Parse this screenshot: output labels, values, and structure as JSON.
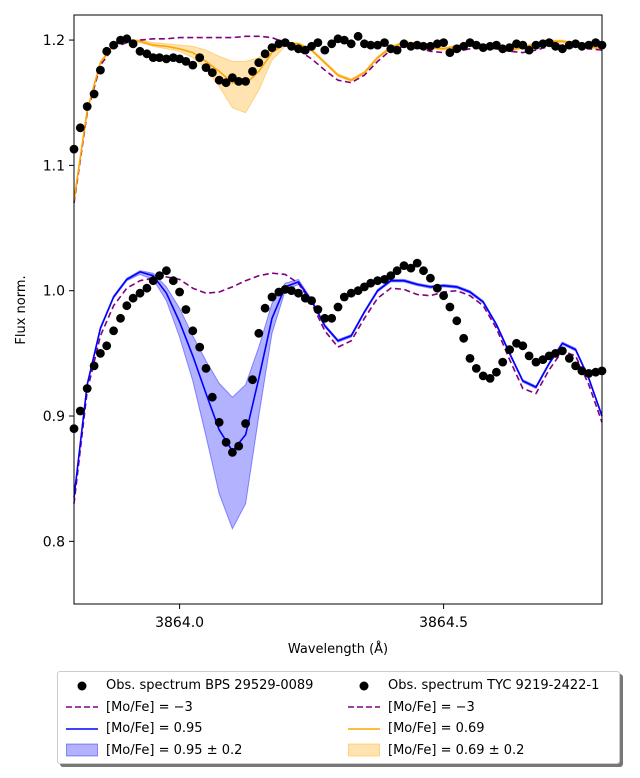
{
  "chart_data": {
    "type": "line",
    "xlabel": "Wavelength (Å)",
    "ylabel": "Flux norm.",
    "xlim": [
      3863.8,
      3864.8
    ],
    "ylim": [
      0.75,
      1.22
    ],
    "xticks": [
      3864.0,
      3864.5
    ],
    "xtick_labels": [
      "3864.0",
      "3864.5"
    ],
    "yticks": [
      0.8,
      0.9,
      1.0,
      1.1,
      1.2
    ],
    "ytick_labels": [
      "0.8",
      "0.9",
      "1.0",
      "1.1",
      "1.2"
    ],
    "colors": {
      "obs": "#000000",
      "mo_low": "#800080",
      "bps_fit": "#0000ff",
      "bps_band": "#0000ff",
      "tyc_fit": "#ffa500",
      "tyc_band": "#ffa500"
    },
    "legend": [
      {
        "label": "Obs. spectrum BPS 29529-0089",
        "style": "dot"
      },
      {
        "label": "[Mo/Fe] = −3",
        "style": "dashed",
        "color": "#800080"
      },
      {
        "label": "[Mo/Fe] = 0.95",
        "style": "line",
        "color": "#0000ff"
      },
      {
        "label": "[Mo/Fe] = 0.95 ± 0.2",
        "style": "band",
        "color": "#0000ff"
      },
      {
        "label": "Obs. spectrum TYC 9219-2422-1",
        "style": "dot"
      },
      {
        "label": "[Mo/Fe] = −3",
        "style": "dashed",
        "color": "#800080"
      },
      {
        "label": "[Mo/Fe] = 0.69",
        "style": "line",
        "color": "#ffa500"
      },
      {
        "label": "[Mo/Fe] = 0.69 ± 0.2",
        "style": "band",
        "color": "#ffa500"
      }
    ],
    "series": [
      {
        "name": "Obs. spectrum TYC 9219-2422-1",
        "kind": "scatter",
        "x": [
          3863.8,
          3863.812,
          3863.825,
          3863.838,
          3863.85,
          3863.862,
          3863.875,
          3863.888,
          3863.9,
          3863.912,
          3863.925,
          3863.938,
          3863.95,
          3863.962,
          3863.975,
          3863.988,
          3864.0,
          3864.012,
          3864.025,
          3864.038,
          3864.05,
          3864.062,
          3864.075,
          3864.088,
          3864.1,
          3864.112,
          3864.125,
          3864.138,
          3864.15,
          3864.162,
          3864.175,
          3864.188,
          3864.2,
          3864.212,
          3864.225,
          3864.238,
          3864.25,
          3864.262,
          3864.275,
          3864.288,
          3864.3,
          3864.312,
          3864.325,
          3864.338,
          3864.35,
          3864.362,
          3864.375,
          3864.388,
          3864.4,
          3864.412,
          3864.425,
          3864.438,
          3864.45,
          3864.462,
          3864.475,
          3864.488,
          3864.5,
          3864.512,
          3864.525,
          3864.538,
          3864.55,
          3864.562,
          3864.575,
          3864.588,
          3864.6,
          3864.612,
          3864.625,
          3864.638,
          3864.65,
          3864.662,
          3864.675,
          3864.688,
          3864.7,
          3864.712,
          3864.725,
          3864.738,
          3864.75,
          3864.762,
          3864.775,
          3864.788,
          3864.8
        ],
        "y": [
          1.113,
          1.13,
          1.147,
          1.157,
          1.176,
          1.191,
          1.196,
          1.2,
          1.201,
          1.197,
          1.191,
          1.189,
          1.186,
          1.186,
          1.185,
          1.186,
          1.185,
          1.183,
          1.18,
          1.186,
          1.178,
          1.174,
          1.168,
          1.166,
          1.17,
          1.167,
          1.167,
          1.175,
          1.182,
          1.189,
          1.194,
          1.197,
          1.198,
          1.195,
          1.193,
          1.192,
          1.195,
          1.198,
          1.192,
          1.197,
          1.201,
          1.2,
          1.197,
          1.203,
          1.197,
          1.196,
          1.196,
          1.198,
          1.193,
          1.192,
          1.197,
          1.195,
          1.196,
          1.195,
          1.195,
          1.197,
          1.198,
          1.19,
          1.193,
          1.195,
          1.198,
          1.196,
          1.194,
          1.195,
          1.196,
          1.193,
          1.194,
          1.197,
          1.196,
          1.192,
          1.196,
          1.197,
          1.198,
          1.195,
          1.193,
          1.196,
          1.197,
          1.195,
          1.196,
          1.198,
          1.196
        ]
      },
      {
        "name": "TYC [Mo/Fe] = −3",
        "kind": "dashed",
        "x": [
          3863.8,
          3863.825,
          3863.85,
          3863.875,
          3863.9,
          3863.925,
          3863.95,
          3863.975,
          3864.0,
          3864.025,
          3864.05,
          3864.075,
          3864.1,
          3864.125,
          3864.15,
          3864.175,
          3864.2,
          3864.225,
          3864.25,
          3864.275,
          3864.3,
          3864.325,
          3864.35,
          3864.375,
          3864.4,
          3864.425,
          3864.45,
          3864.475,
          3864.5,
          3864.525,
          3864.55,
          3864.575,
          3864.6,
          3864.625,
          3864.65,
          3864.675,
          3864.7,
          3864.725,
          3864.75,
          3864.775,
          3864.8
        ],
        "y": [
          1.07,
          1.142,
          1.18,
          1.194,
          1.198,
          1.2,
          1.201,
          1.201,
          1.202,
          1.202,
          1.202,
          1.202,
          1.202,
          1.203,
          1.203,
          1.202,
          1.198,
          1.192,
          1.185,
          1.176,
          1.168,
          1.166,
          1.172,
          1.183,
          1.192,
          1.195,
          1.194,
          1.191,
          1.19,
          1.191,
          1.193,
          1.194,
          1.193,
          1.191,
          1.19,
          1.192,
          1.195,
          1.196,
          1.195,
          1.193,
          1.192
        ]
      },
      {
        "name": "TYC [Mo/Fe] = 0.69",
        "kind": "line",
        "x": [
          3863.8,
          3863.825,
          3863.85,
          3863.875,
          3863.9,
          3863.925,
          3863.95,
          3863.975,
          3864.0,
          3864.025,
          3864.05,
          3864.075,
          3864.1,
          3864.125,
          3864.15,
          3864.175,
          3864.2,
          3864.225,
          3864.25,
          3864.275,
          3864.3,
          3864.325,
          3864.35,
          3864.375,
          3864.4,
          3864.425,
          3864.45,
          3864.475,
          3864.5,
          3864.525,
          3864.55,
          3864.575,
          3864.6,
          3864.625,
          3864.65,
          3864.675,
          3864.7,
          3864.725,
          3864.75,
          3864.775,
          3864.8
        ],
        "y": [
          1.072,
          1.144,
          1.182,
          1.196,
          1.2,
          1.199,
          1.196,
          1.195,
          1.193,
          1.19,
          1.183,
          1.175,
          1.166,
          1.165,
          1.175,
          1.19,
          1.197,
          1.197,
          1.192,
          1.182,
          1.172,
          1.168,
          1.174,
          1.186,
          1.194,
          1.198,
          1.197,
          1.194,
          1.193,
          1.195,
          1.197,
          1.196,
          1.194,
          1.192,
          1.194,
          1.197,
          1.199,
          1.199,
          1.197,
          1.195,
          1.193
        ]
      },
      {
        "name": "TYC [Mo/Fe] = 0.69 ± 0.2",
        "kind": "band",
        "x": [
          3863.8,
          3863.825,
          3863.85,
          3863.875,
          3863.9,
          3863.925,
          3863.95,
          3863.975,
          3864.0,
          3864.025,
          3864.05,
          3864.075,
          3864.1,
          3864.125,
          3864.15,
          3864.175,
          3864.2,
          3864.225,
          3864.25,
          3864.275,
          3864.3,
          3864.325,
          3864.35,
          3864.375,
          3864.4,
          3864.425,
          3864.45,
          3864.475,
          3864.5,
          3864.525,
          3864.55,
          3864.575,
          3864.6,
          3864.625,
          3864.65,
          3864.675,
          3864.7,
          3864.725,
          3864.75,
          3864.775,
          3864.8
        ],
        "lower": [
          1.071,
          1.143,
          1.181,
          1.195,
          1.199,
          1.198,
          1.195,
          1.193,
          1.191,
          1.186,
          1.177,
          1.163,
          1.146,
          1.142,
          1.16,
          1.184,
          1.195,
          1.196,
          1.191,
          1.181,
          1.171,
          1.167,
          1.173,
          1.185,
          1.193,
          1.197,
          1.196,
          1.193,
          1.192,
          1.194,
          1.196,
          1.195,
          1.193,
          1.191,
          1.193,
          1.196,
          1.198,
          1.198,
          1.196,
          1.194,
          1.192
        ],
        "upper": [
          1.073,
          1.145,
          1.183,
          1.197,
          1.201,
          1.2,
          1.198,
          1.197,
          1.196,
          1.195,
          1.192,
          1.187,
          1.183,
          1.183,
          1.186,
          1.194,
          1.198,
          1.198,
          1.193,
          1.183,
          1.173,
          1.169,
          1.175,
          1.187,
          1.195,
          1.199,
          1.198,
          1.195,
          1.194,
          1.196,
          1.198,
          1.197,
          1.195,
          1.193,
          1.195,
          1.198,
          1.2,
          1.2,
          1.198,
          1.196,
          1.194
        ]
      },
      {
        "name": "Obs. spectrum BPS 29529-0089",
        "kind": "scatter",
        "x": [
          3863.8,
          3863.812,
          3863.825,
          3863.838,
          3863.85,
          3863.862,
          3863.875,
          3863.888,
          3863.9,
          3863.912,
          3863.925,
          3863.938,
          3863.95,
          3863.962,
          3863.975,
          3863.988,
          3864.0,
          3864.012,
          3864.025,
          3864.038,
          3864.05,
          3864.062,
          3864.075,
          3864.088,
          3864.1,
          3864.112,
          3864.125,
          3864.138,
          3864.15,
          3864.162,
          3864.175,
          3864.188,
          3864.2,
          3864.212,
          3864.225,
          3864.238,
          3864.25,
          3864.262,
          3864.275,
          3864.288,
          3864.3,
          3864.312,
          3864.325,
          3864.338,
          3864.35,
          3864.362,
          3864.375,
          3864.388,
          3864.4,
          3864.412,
          3864.425,
          3864.438,
          3864.45,
          3864.462,
          3864.475,
          3864.488,
          3864.5,
          3864.512,
          3864.525,
          3864.538,
          3864.55,
          3864.562,
          3864.575,
          3864.588,
          3864.6,
          3864.612,
          3864.625,
          3864.638,
          3864.65,
          3864.662,
          3864.675,
          3864.688,
          3864.7,
          3864.712,
          3864.725,
          3864.738,
          3864.75,
          3864.762,
          3864.775,
          3864.788,
          3864.8
        ],
        "y": [
          0.89,
          0.904,
          0.922,
          0.94,
          0.95,
          0.956,
          0.968,
          0.978,
          0.988,
          0.994,
          0.998,
          1.002,
          1.008,
          1.012,
          1.016,
          1.008,
          0.999,
          0.985,
          0.968,
          0.955,
          0.938,
          0.915,
          0.895,
          0.879,
          0.871,
          0.876,
          0.894,
          0.929,
          0.966,
          0.986,
          0.995,
          0.999,
          1.001,
          1.0,
          0.998,
          0.994,
          0.992,
          0.985,
          0.978,
          0.978,
          0.987,
          0.995,
          0.998,
          1.0,
          1.003,
          1.006,
          1.008,
          1.009,
          1.012,
          1.016,
          1.02,
          1.018,
          1.022,
          1.016,
          1.01,
          1.002,
          0.996,
          0.987,
          0.976,
          0.962,
          0.946,
          0.938,
          0.932,
          0.93,
          0.935,
          0.943,
          0.953,
          0.958,
          0.956,
          0.948,
          0.943,
          0.945,
          0.948,
          0.95,
          0.952,
          0.946,
          0.94,
          0.936,
          0.934,
          0.935,
          0.936
        ]
      },
      {
        "name": "BPS [Mo/Fe] = −3",
        "kind": "dashed",
        "x": [
          3863.8,
          3863.825,
          3863.85,
          3863.875,
          3863.9,
          3863.925,
          3863.95,
          3863.975,
          3864.0,
          3864.025,
          3864.05,
          3864.075,
          3864.1,
          3864.125,
          3864.15,
          3864.175,
          3864.2,
          3864.225,
          3864.25,
          3864.275,
          3864.3,
          3864.325,
          3864.35,
          3864.375,
          3864.4,
          3864.425,
          3864.45,
          3864.475,
          3864.5,
          3864.525,
          3864.55,
          3864.575,
          3864.6,
          3864.625,
          3864.65,
          3864.675,
          3864.7,
          3864.725,
          3864.75,
          3864.775,
          3864.8
        ],
        "y": [
          0.83,
          0.92,
          0.964,
          0.988,
          1.002,
          1.008,
          1.01,
          1.011,
          1.009,
          1.002,
          0.998,
          0.999,
          1.003,
          1.008,
          1.012,
          1.014,
          1.013,
          1.006,
          0.99,
          0.968,
          0.955,
          0.96,
          0.978,
          0.994,
          1.002,
          1.001,
          0.997,
          0.996,
          0.999,
          1.0,
          0.996,
          0.988,
          0.97,
          0.945,
          0.922,
          0.918,
          0.937,
          0.952,
          0.948,
          0.925,
          0.895
        ]
      },
      {
        "name": "BPS [Mo/Fe] = 0.95",
        "kind": "line",
        "x": [
          3863.8,
          3863.825,
          3863.85,
          3863.875,
          3863.9,
          3863.925,
          3863.95,
          3863.975,
          3864.0,
          3864.025,
          3864.05,
          3864.075,
          3864.1,
          3864.125,
          3864.15,
          3864.175,
          3864.2,
          3864.225,
          3864.25,
          3864.275,
          3864.3,
          3864.325,
          3864.35,
          3864.375,
          3864.4,
          3864.425,
          3864.45,
          3864.475,
          3864.5,
          3864.525,
          3864.55,
          3864.575,
          3864.6,
          3864.625,
          3864.65,
          3864.675,
          3864.7,
          3864.725,
          3864.75,
          3864.775,
          3864.8
        ],
        "y": [
          0.835,
          0.925,
          0.97,
          0.995,
          1.009,
          1.015,
          1.012,
          0.998,
          0.975,
          0.948,
          0.918,
          0.889,
          0.872,
          0.885,
          0.93,
          0.978,
          1.003,
          1.007,
          0.992,
          0.972,
          0.96,
          0.964,
          0.983,
          1.0,
          1.008,
          1.008,
          1.005,
          1.003,
          1.004,
          1.003,
          0.999,
          0.991,
          0.973,
          0.95,
          0.928,
          0.923,
          0.942,
          0.958,
          0.953,
          0.93,
          0.9
        ]
      },
      {
        "name": "BPS [Mo/Fe] = 0.95 ± 0.2",
        "kind": "band",
        "x": [
          3863.8,
          3863.825,
          3863.85,
          3863.875,
          3863.9,
          3863.925,
          3863.95,
          3863.975,
          3864.0,
          3864.025,
          3864.05,
          3864.075,
          3864.1,
          3864.125,
          3864.15,
          3864.175,
          3864.2,
          3864.225,
          3864.25,
          3864.275,
          3864.3,
          3864.325,
          3864.35,
          3864.375,
          3864.4,
          3864.425,
          3864.45,
          3864.475,
          3864.5,
          3864.525,
          3864.55,
          3864.575,
          3864.6,
          3864.625,
          3864.65,
          3864.675,
          3864.7,
          3864.725,
          3864.75,
          3864.775,
          3864.8
        ],
        "lower": [
          0.834,
          0.924,
          0.969,
          0.994,
          1.008,
          1.013,
          1.009,
          0.992,
          0.963,
          0.928,
          0.884,
          0.838,
          0.81,
          0.83,
          0.9,
          0.966,
          1.0,
          1.005,
          0.991,
          0.971,
          0.959,
          0.963,
          0.982,
          0.999,
          1.007,
          1.007,
          1.004,
          1.002,
          1.003,
          1.002,
          0.998,
          0.99,
          0.972,
          0.949,
          0.927,
          0.922,
          0.941,
          0.957,
          0.952,
          0.929,
          0.899
        ],
        "upper": [
          0.836,
          0.926,
          0.971,
          0.996,
          1.01,
          1.016,
          1.014,
          1.003,
          0.986,
          0.964,
          0.944,
          0.926,
          0.915,
          0.925,
          0.955,
          0.99,
          1.006,
          1.009,
          0.993,
          0.973,
          0.961,
          0.965,
          0.984,
          1.001,
          1.009,
          1.009,
          1.006,
          1.004,
          1.005,
          1.004,
          1.0,
          0.992,
          0.974,
          0.951,
          0.929,
          0.924,
          0.943,
          0.959,
          0.954,
          0.931,
          0.901
        ]
      }
    ]
  }
}
